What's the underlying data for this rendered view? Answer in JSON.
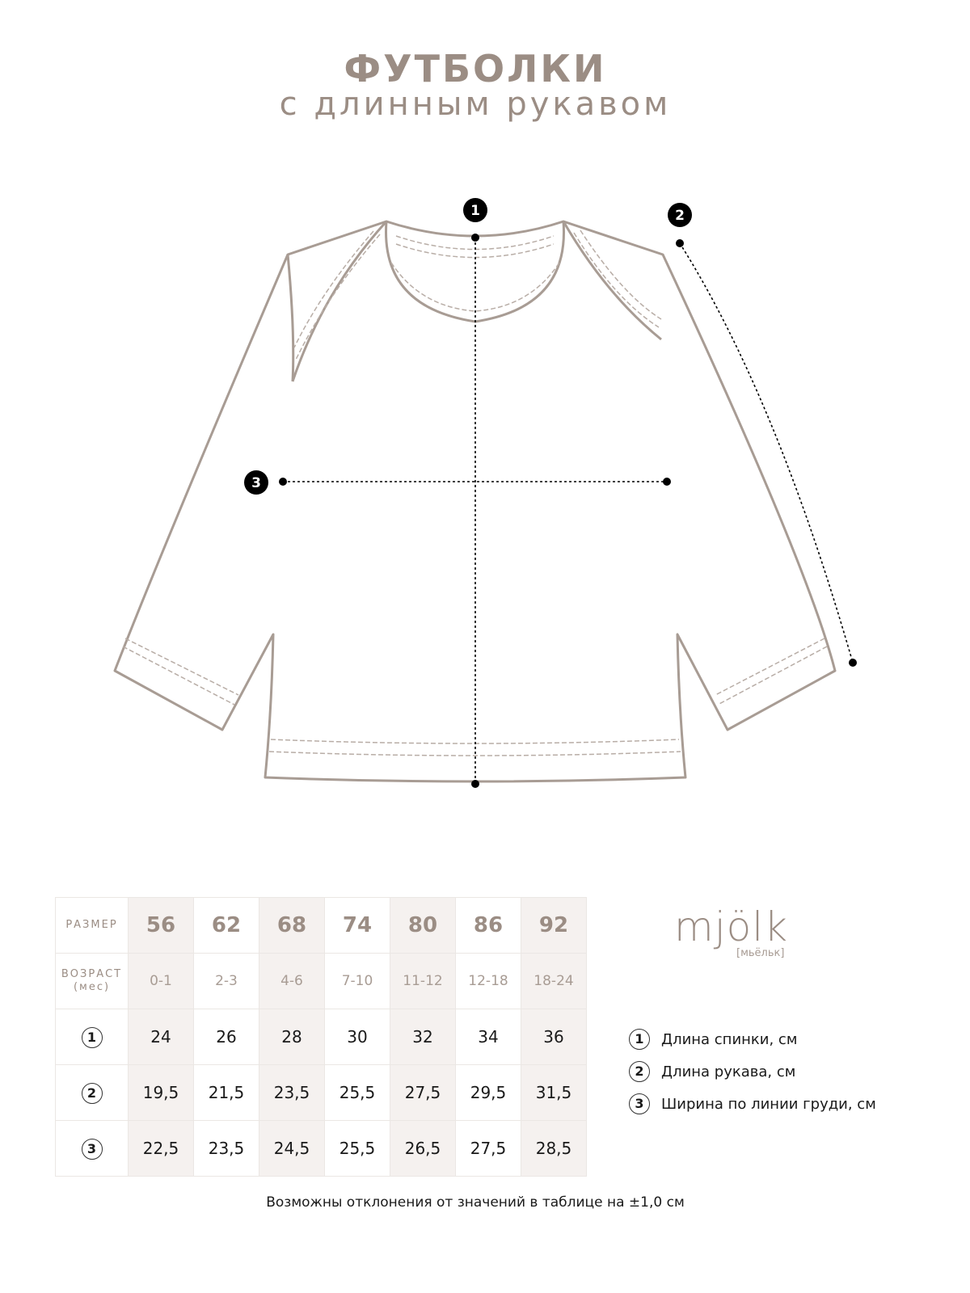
{
  "title": {
    "line1": "ФУТБОЛКИ",
    "line2": "с длинным рукавом"
  },
  "markers": [
    "1",
    "2",
    "3"
  ],
  "table": {
    "size_label": "РАЗМЕР",
    "age_label": "ВОЗРАСТ",
    "age_unit": "(мес)",
    "sizes": [
      "56",
      "62",
      "68",
      "74",
      "80",
      "86",
      "92"
    ],
    "ages": [
      "0-1",
      "2-3",
      "4-6",
      "7-10",
      "11-12",
      "12-18",
      "18-24"
    ],
    "rows": [
      {
        "marker": "1",
        "values": [
          "24",
          "26",
          "28",
          "30",
          "32",
          "34",
          "36"
        ]
      },
      {
        "marker": "2",
        "values": [
          "19,5",
          "21,5",
          "23,5",
          "25,5",
          "27,5",
          "29,5",
          "31,5"
        ]
      },
      {
        "marker": "3",
        "values": [
          "22,5",
          "23,5",
          "24,5",
          "25,5",
          "26,5",
          "27,5",
          "28,5"
        ]
      }
    ]
  },
  "logo": {
    "text": "mjölk",
    "sub": "[мьёльк]"
  },
  "legend": [
    {
      "marker": "1",
      "label": "Длина спинки, см"
    },
    {
      "marker": "2",
      "label": "Длина рукава, см"
    },
    {
      "marker": "3",
      "label": "Ширина по линии груди, см"
    }
  ],
  "note": "Возможны отклонения от значений в таблице на ±1,0 см",
  "colors": {
    "accent": "#9b8d84",
    "shade": "#f5f1ef"
  }
}
